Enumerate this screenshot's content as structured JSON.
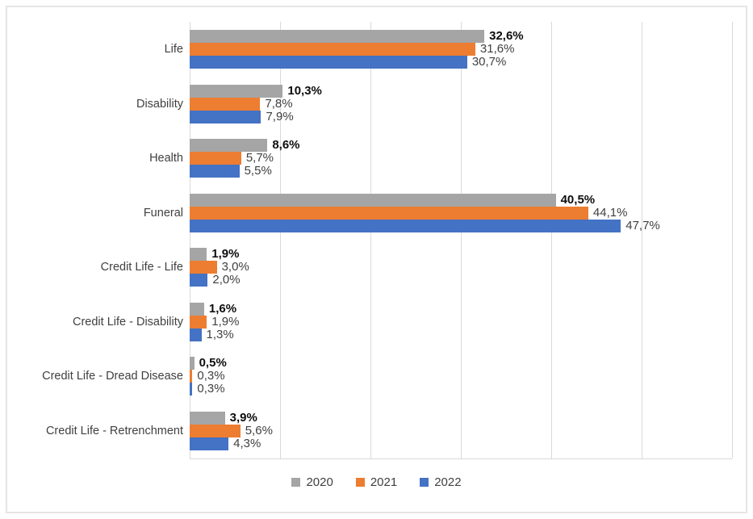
{
  "chart_data": {
    "type": "bar",
    "orientation": "horizontal",
    "title": "",
    "xlabel": "",
    "ylabel": "",
    "xlim": [
      0,
      60
    ],
    "gridline_interval": 10,
    "grid": true,
    "legend_position": "bottom",
    "value_format": "percent-comma-decimal",
    "categories": [
      "Life",
      "Disability",
      "Health",
      "Funeral",
      "Credit Life - Life",
      "Credit Life - Disability",
      "Credit Life - Dread Disease",
      "Credit Life - Retrenchment"
    ],
    "series": [
      {
        "name": "2020",
        "color": "#a5a5a5",
        "values": [
          32.6,
          10.3,
          8.6,
          40.5,
          1.9,
          1.6,
          0.5,
          3.9
        ],
        "data_labels": [
          "32,6%",
          "10,3%",
          "8,6%",
          "40,5%",
          "1,9%",
          "1,6%",
          "0,5%",
          "3,9%"
        ],
        "label_weight": "bold"
      },
      {
        "name": "2021",
        "color": "#ed7d31",
        "values": [
          31.6,
          7.8,
          5.7,
          44.1,
          3.0,
          1.9,
          0.3,
          5.6
        ],
        "data_labels": [
          "31,6%",
          "7,8%",
          "5,7%",
          "44,1%",
          "3,0%",
          "1,9%",
          "0,3%",
          "5,6%"
        ],
        "label_weight": "normal"
      },
      {
        "name": "2022",
        "color": "#4472c4",
        "values": [
          30.7,
          7.9,
          5.5,
          47.7,
          2.0,
          1.3,
          0.3,
          4.3
        ],
        "data_labels": [
          "30,7%",
          "7,9%",
          "5,5%",
          "47,7%",
          "2,0%",
          "1,3%",
          "0,3%",
          "4,3%"
        ],
        "label_weight": "normal"
      }
    ],
    "legend": [
      {
        "label": "2020",
        "color": "#a5a5a5"
      },
      {
        "label": "2021",
        "color": "#ed7d31"
      },
      {
        "label": "2022",
        "color": "#4472c4"
      }
    ]
  },
  "colors": {
    "gridline": "#d9d9d9",
    "axis_line": "#d9d9d9",
    "frame_border": "#e5e5e5",
    "category_text": "#404040",
    "data_label_2020": "#0d0d0d",
    "data_label_other": "#404040",
    "background": "#ffffff"
  }
}
